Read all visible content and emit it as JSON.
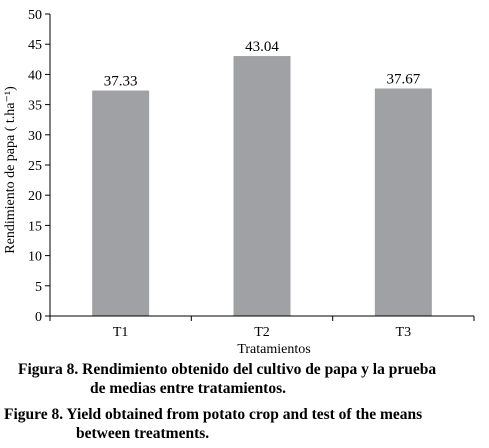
{
  "chart_data": {
    "type": "bar",
    "categories": [
      "T1",
      "T2",
      "T3"
    ],
    "values": [
      37.33,
      43.04,
      37.67
    ],
    "data_labels": [
      "37.33",
      "43.04",
      "37.67"
    ],
    "xlabel": "Tratamientos",
    "ylabel": "Rendimiento de papa ( t.ha⁻¹)",
    "ylim": [
      0,
      50
    ],
    "yticks": [
      0,
      5,
      10,
      15,
      20,
      25,
      30,
      35,
      40,
      45,
      50
    ],
    "grid": false,
    "bar_color": "#a0a1a5",
    "axis_color": "#000000"
  },
  "captions": {
    "es": {
      "line1": "Figura 8. Rendimiento obtenido del cultivo de papa y la prueba",
      "line2": "de medias entre tratamientos."
    },
    "en": {
      "line1": "Figure 8. Yield obtained from potato crop and test of the means",
      "line2": "between treatments."
    }
  }
}
